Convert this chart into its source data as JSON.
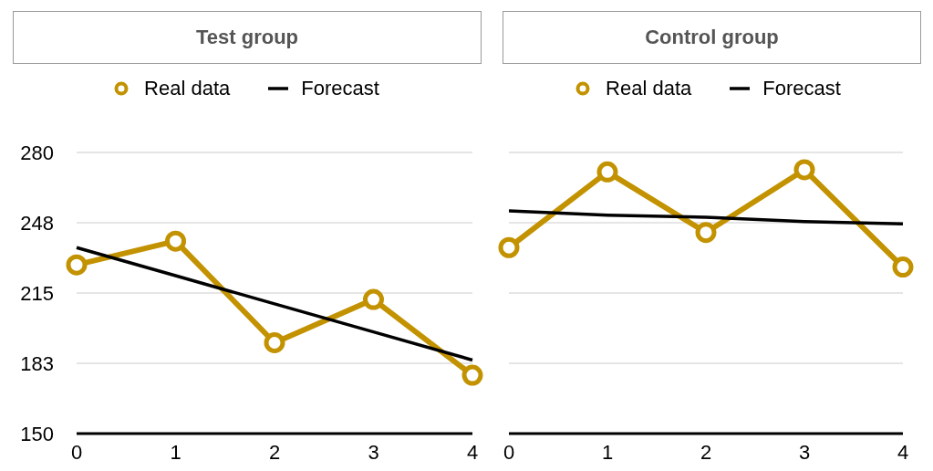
{
  "chart_data": [
    {
      "type": "line",
      "title": "Test group",
      "x": [
        0,
        1,
        2,
        3,
        4
      ],
      "xlim": [
        0,
        4
      ],
      "xticks": [
        0,
        1,
        2,
        3,
        4
      ],
      "ylim": [
        150,
        280
      ],
      "yticks": [
        150,
        {
          "value": 182.5,
          "label": "183"
        },
        215,
        {
          "value": 247.5,
          "label": "248"
        },
        280
      ],
      "grid": "y",
      "legend": "top",
      "series": [
        {
          "name": "Real data",
          "color": "#c39200",
          "marker": "circle",
          "values": [
            228,
            239,
            192,
            212,
            177
          ]
        },
        {
          "name": "Forecast",
          "color": "#000000",
          "marker": "none",
          "values": [
            236,
            223,
            210,
            197,
            184
          ]
        }
      ]
    },
    {
      "type": "line",
      "title": "Control group",
      "x": [
        0,
        1,
        2,
        3,
        4
      ],
      "xlim": [
        0,
        4
      ],
      "xticks": [
        0,
        1,
        2,
        3,
        4
      ],
      "ylim": [
        150,
        280
      ],
      "yticks": [
        150,
        182.5,
        215,
        247.5,
        280
      ],
      "grid": "y",
      "legend": "top",
      "tick_labels": "x",
      "series": [
        {
          "name": "Real data",
          "color": "#c39200",
          "marker": "circle",
          "values": [
            236,
            271,
            243,
            272,
            227
          ]
        },
        {
          "name": "Forecast",
          "color": "#000000",
          "marker": "none",
          "values": [
            253,
            251,
            250,
            248,
            247
          ]
        }
      ]
    }
  ]
}
